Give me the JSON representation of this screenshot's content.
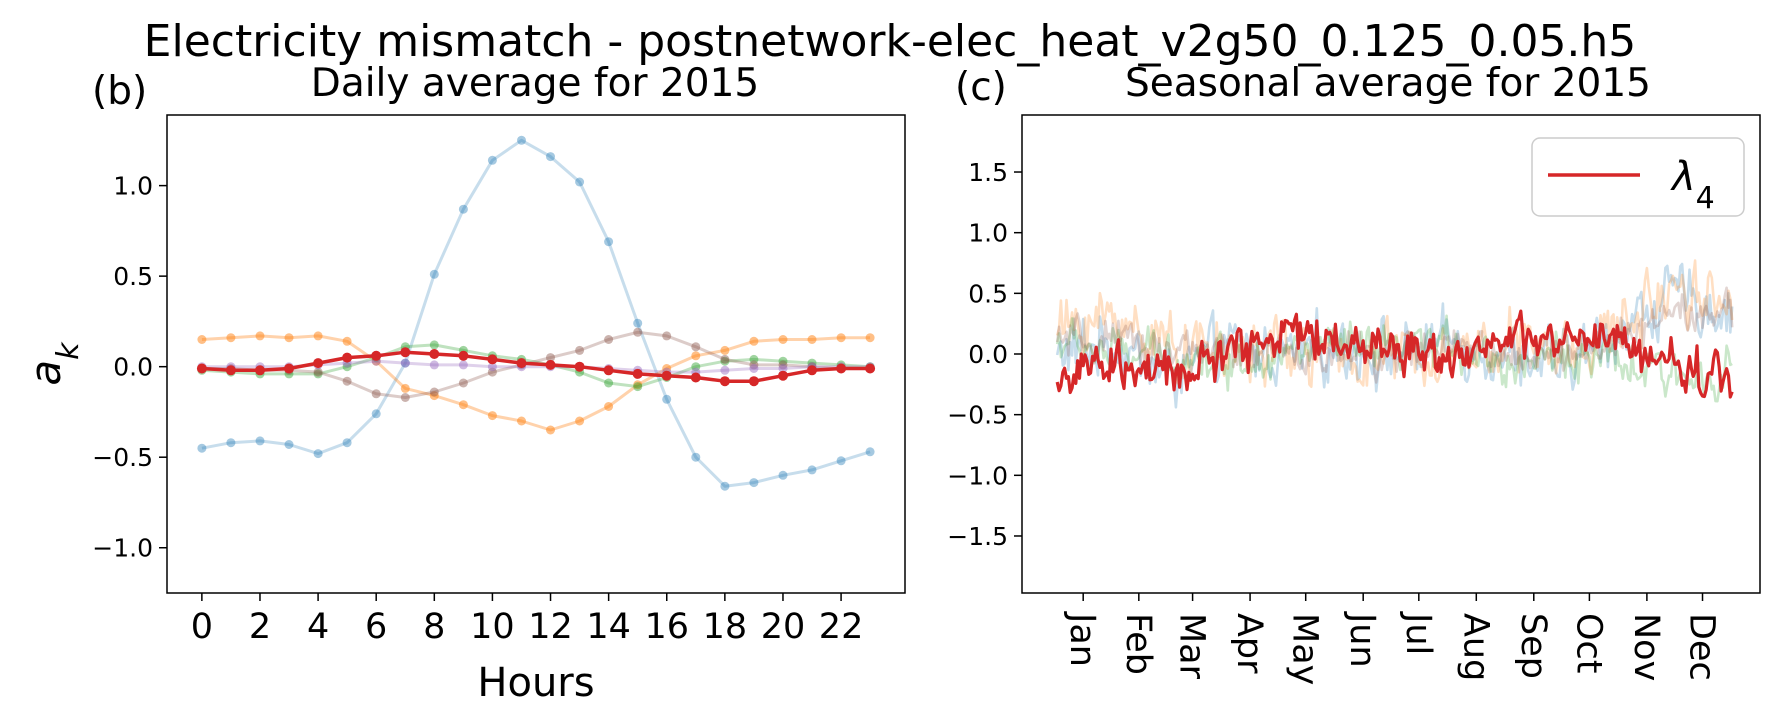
{
  "figure": {
    "title": "Electricity mismatch - postnetwork-elec_heat_v2g50_0.125_0.05.h5"
  },
  "panel_b": {
    "label": "(b)",
    "title": "Daily average for 2015",
    "xlabel": "Hours",
    "ylabel": "a",
    "ylabel_sub": "k"
  },
  "panel_c": {
    "label": "(c)",
    "title": "Seasonal average for 2015",
    "legend": {
      "label": "λ",
      "label_sub": "4",
      "location": "upper right",
      "color": "#d62728"
    }
  },
  "chart_data": [
    {
      "type": "line",
      "panel": "b",
      "title": "Daily average for 2015",
      "xlabel": "Hours",
      "ylabel": "a_k",
      "xlim": [
        -1.2,
        24.2
      ],
      "ylim": [
        -1.25,
        1.39
      ],
      "xticks": [
        0,
        2,
        4,
        6,
        8,
        10,
        12,
        14,
        16,
        18,
        20,
        22
      ],
      "yticks": [
        -1.0,
        -0.5,
        0.0,
        0.5,
        1.0
      ],
      "ytick_labels": [
        "−1.0",
        "−0.5",
        "0.0",
        "0.5",
        "1.0"
      ],
      "grid": false,
      "x": [
        0,
        1,
        2,
        3,
        4,
        5,
        6,
        7,
        8,
        9,
        10,
        11,
        12,
        13,
        14,
        15,
        16,
        17,
        18,
        19,
        20,
        21,
        22,
        23
      ],
      "series": [
        {
          "color": "#1f77b4",
          "alpha": 0.25,
          "values": [
            -0.45,
            -0.42,
            -0.41,
            -0.43,
            -0.48,
            -0.42,
            -0.26,
            0.02,
            0.51,
            0.87,
            1.14,
            1.25,
            1.16,
            1.02,
            0.69,
            0.24,
            -0.18,
            -0.5,
            -0.66,
            -0.64,
            -0.6,
            -0.57,
            -0.52,
            -0.47
          ]
        },
        {
          "color": "#ff7f0e",
          "alpha": 0.35,
          "values": [
            0.15,
            0.16,
            0.17,
            0.16,
            0.17,
            0.14,
            0.03,
            -0.12,
            -0.16,
            -0.21,
            -0.27,
            -0.3,
            -0.35,
            -0.3,
            -0.22,
            -0.1,
            -0.01,
            0.06,
            0.09,
            0.14,
            0.15,
            0.15,
            0.16,
            0.16
          ]
        },
        {
          "color": "#2ca02c",
          "alpha": 0.3,
          "values": [
            -0.02,
            -0.03,
            -0.04,
            -0.04,
            -0.04,
            0.0,
            0.05,
            0.11,
            0.12,
            0.09,
            0.06,
            0.04,
            0.01,
            -0.03,
            -0.09,
            -0.11,
            -0.06,
            0.0,
            0.03,
            0.04,
            0.03,
            0.02,
            0.01,
            0.0
          ]
        },
        {
          "color": "#8c564b",
          "alpha": 0.3,
          "values": [
            -0.01,
            -0.01,
            -0.02,
            -0.02,
            -0.03,
            -0.08,
            -0.15,
            -0.17,
            -0.14,
            -0.09,
            -0.03,
            0.01,
            0.05,
            0.09,
            0.15,
            0.19,
            0.17,
            0.11,
            0.04,
            0.01,
            0.01,
            0.0,
            -0.01,
            -0.01
          ]
        },
        {
          "color": "#9467bd",
          "alpha": 0.3,
          "values": [
            0.0,
            0.0,
            0.0,
            0.0,
            0.01,
            0.02,
            0.03,
            0.02,
            0.01,
            0.01,
            0.0,
            0.0,
            0.0,
            0.0,
            -0.01,
            -0.02,
            -0.03,
            -0.03,
            -0.02,
            -0.01,
            -0.01,
            0.0,
            0.0,
            0.0
          ]
        },
        {
          "color": "#d62728",
          "alpha": 1.0,
          "highlight": true,
          "values": [
            -0.01,
            -0.02,
            -0.02,
            -0.01,
            0.02,
            0.05,
            0.06,
            0.08,
            0.07,
            0.06,
            0.04,
            0.02,
            0.01,
            0.0,
            -0.02,
            -0.04,
            -0.05,
            -0.06,
            -0.08,
            -0.08,
            -0.05,
            -0.02,
            -0.01,
            -0.01
          ]
        }
      ]
    },
    {
      "type": "line",
      "panel": "c",
      "title": "Seasonal average for 2015",
      "xlim": [
        -18,
        380
      ],
      "ylim": [
        -1.97,
        1.97
      ],
      "yticks": [
        -1.5,
        -1.0,
        -0.5,
        0.0,
        0.5,
        1.0,
        1.5
      ],
      "ytick_labels": [
        "−1.5",
        "−1.0",
        "−0.5",
        "0.0",
        "0.5",
        "1.0",
        "1.5"
      ],
      "xticks": [
        15,
        45,
        74,
        105,
        135,
        166,
        196,
        227,
        258,
        288,
        319,
        349
      ],
      "xtick_labels": [
        "Jan",
        "Feb",
        "Mar",
        "Apr",
        "May",
        "Jun",
        "Jul",
        "Aug",
        "Sep",
        "Oct",
        "Nov",
        "Dec"
      ],
      "grid": false,
      "legend_location": "top-right",
      "days": 365,
      "series": [
        {
          "color": "#1f77b4",
          "alpha": 0.25,
          "note": "faint",
          "anchors": [
            0.0,
            0.1,
            -0.2,
            0.05,
            0.0,
            0.05,
            0.0,
            0.1,
            0.0,
            -0.1,
            0.2,
            0.5,
            0.3
          ],
          "amplitude": 0.3
        },
        {
          "color": "#ff7f0e",
          "alpha": 0.25,
          "anchors": [
            0.2,
            0.3,
            0.1,
            0.0,
            0.05,
            -0.05,
            0.0,
            0.0,
            0.1,
            0.0,
            0.2,
            0.6,
            0.4
          ],
          "amplitude": 0.3
        },
        {
          "color": "#2ca02c",
          "alpha": 0.25,
          "anchors": [
            0.1,
            0.0,
            0.0,
            -0.05,
            0.0,
            0.05,
            0.0,
            0.1,
            -0.1,
            0.0,
            -0.1,
            -0.2,
            -0.1
          ],
          "amplitude": 0.22
        },
        {
          "color": "#8c564b",
          "alpha": 0.25,
          "anchors": [
            0.1,
            0.1,
            0.05,
            0.0,
            0.0,
            0.0,
            0.0,
            0.05,
            0.0,
            0.0,
            0.1,
            0.4,
            0.3
          ],
          "amplitude": 0.2
        },
        {
          "name": "λ4",
          "color": "#d62728",
          "alpha": 1.0,
          "highlight": true,
          "anchors": [
            -0.2,
            -0.1,
            -0.2,
            0.0,
            0.2,
            0.1,
            0.05,
            0.0,
            0.1,
            0.1,
            0.1,
            -0.1,
            -0.2
          ],
          "amplitude": 0.22
        }
      ]
    }
  ]
}
